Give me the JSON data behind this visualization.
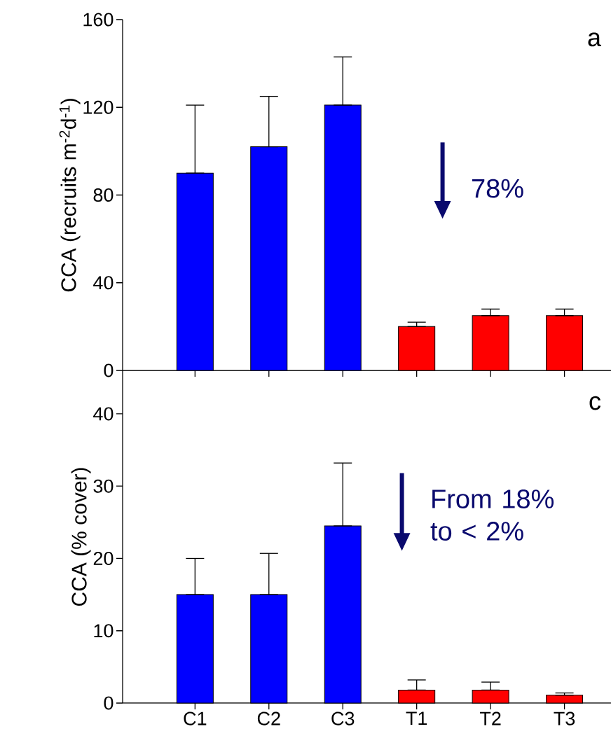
{
  "chart_data": [
    {
      "type": "bar",
      "ylabel": "CCA (recruits m$^{-2}$d$^{-1}$)",
      "categories": [
        null,
        null,
        null,
        null,
        null,
        null
      ],
      "values": [
        90,
        102,
        121,
        20,
        25,
        25
      ],
      "errors": [
        [
          90,
          121
        ],
        [
          102,
          125
        ],
        [
          121,
          143
        ],
        [
          20,
          22
        ],
        [
          25,
          28
        ],
        [
          25,
          28
        ]
      ],
      "colors": [
        "#0000ff",
        "#0000ff",
        "#0000ff",
        "#ff0000",
        "#ff0000",
        "#ff0000"
      ],
      "ylim": [
        0,
        160
      ],
      "yticks": [
        0,
        40,
        80,
        120,
        160
      ],
      "tick_labels": "y",
      "annotations": [
        "a",
        "78%"
      ]
    },
    {
      "type": "bar",
      "ylabel": "CCA (% cover)",
      "categories": [
        "C1",
        "C2",
        "C3",
        "T1",
        "T2",
        "T3"
      ],
      "values": [
        15,
        15,
        24.5,
        1.8,
        1.8,
        1.1
      ],
      "errors": [
        [
          15,
          20
        ],
        [
          15,
          20.7
        ],
        [
          24.5,
          33.2
        ],
        [
          1.8,
          3.2
        ],
        [
          1.8,
          2.9
        ],
        [
          1.1,
          1.4
        ]
      ],
      "colors": [
        "#0000ff",
        "#0000ff",
        "#0000ff",
        "#ff0000",
        "#ff0000",
        "#ff0000"
      ],
      "ylim": [
        0,
        46
      ],
      "yticks": [
        0,
        10,
        20,
        30,
        40
      ],
      "annotations": [
        "c",
        "From 18% to < 2%"
      ]
    }
  ]
}
